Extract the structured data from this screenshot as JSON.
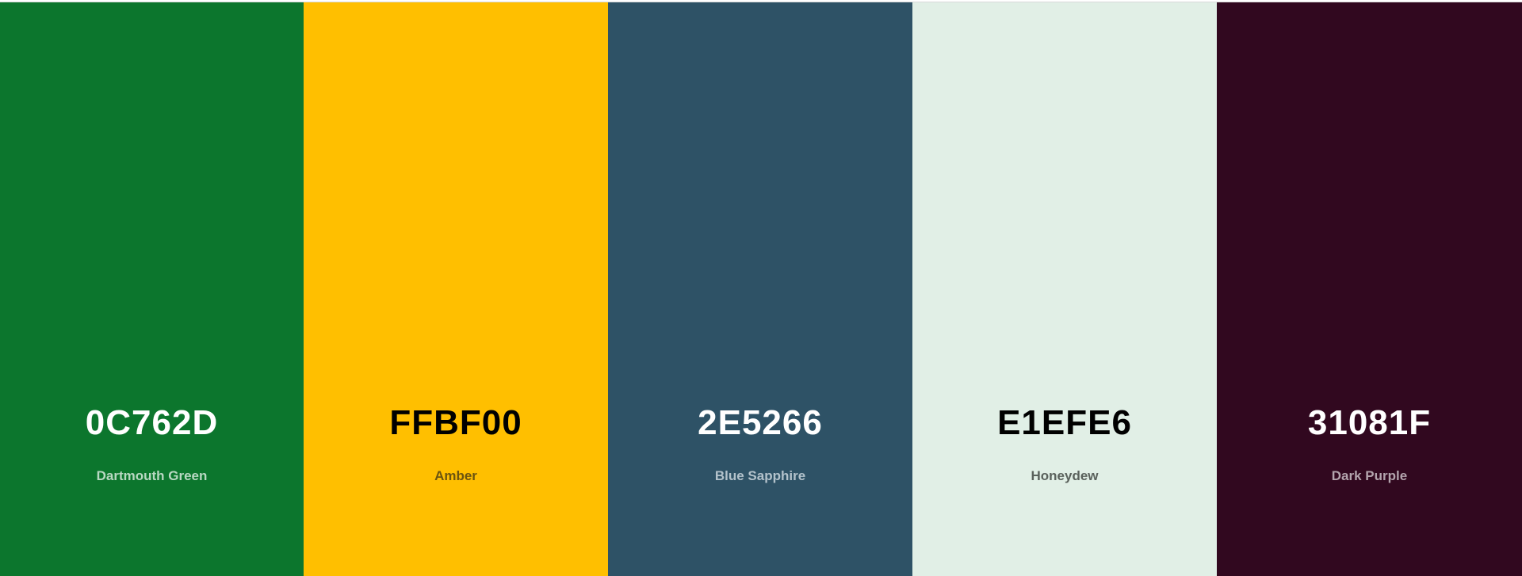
{
  "palette": {
    "colors": [
      {
        "hex": "0C762D",
        "name": "Dartmouth Green",
        "bg": "#0C762D",
        "hex_color": "#ffffff",
        "name_color": "#b9d8c2"
      },
      {
        "hex": "FFBF00",
        "name": "Amber",
        "bg": "#FFBF00",
        "hex_color": "#000000",
        "name_color": "#6b5410"
      },
      {
        "hex": "2E5266",
        "name": "Blue Sapphire",
        "bg": "#2E5266",
        "hex_color": "#ffffff",
        "name_color": "#b3c2cb"
      },
      {
        "hex": "E1EFE6",
        "name": "Honeydew",
        "bg": "#E1EFE6",
        "hex_color": "#000000",
        "name_color": "#5a615c"
      },
      {
        "hex": "31081F",
        "name": "Dark Purple",
        "bg": "#31081F",
        "hex_color": "#ffffff",
        "name_color": "#b3a4ad"
      }
    ]
  }
}
